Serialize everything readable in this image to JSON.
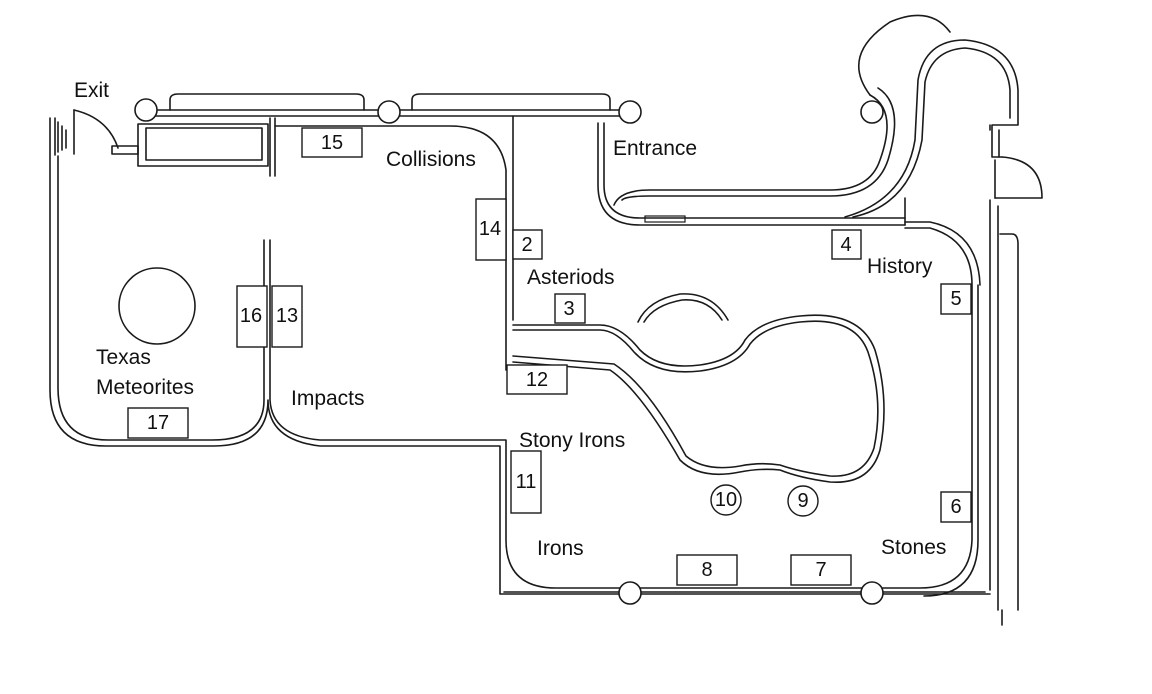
{
  "labels": {
    "exit": "Exit",
    "entrance": "Entrance",
    "collisions": "Collisions",
    "asteriods": "Asteriods",
    "history": "History",
    "texas": "Texas",
    "meteorites": "Meteorites",
    "impacts": "Impacts",
    "stony_irons": "Stony Irons",
    "irons": "Irons",
    "stones": "Stones"
  },
  "exhibits": {
    "e2": "2",
    "e3": "3",
    "e4": "4",
    "e5": "5",
    "e6": "6",
    "e7": "7",
    "e8": "8",
    "e9": "9",
    "e10": "10",
    "e11": "11",
    "e12": "12",
    "e13": "13",
    "e14": "14",
    "e15": "15",
    "e16": "16",
    "e17": "17"
  }
}
